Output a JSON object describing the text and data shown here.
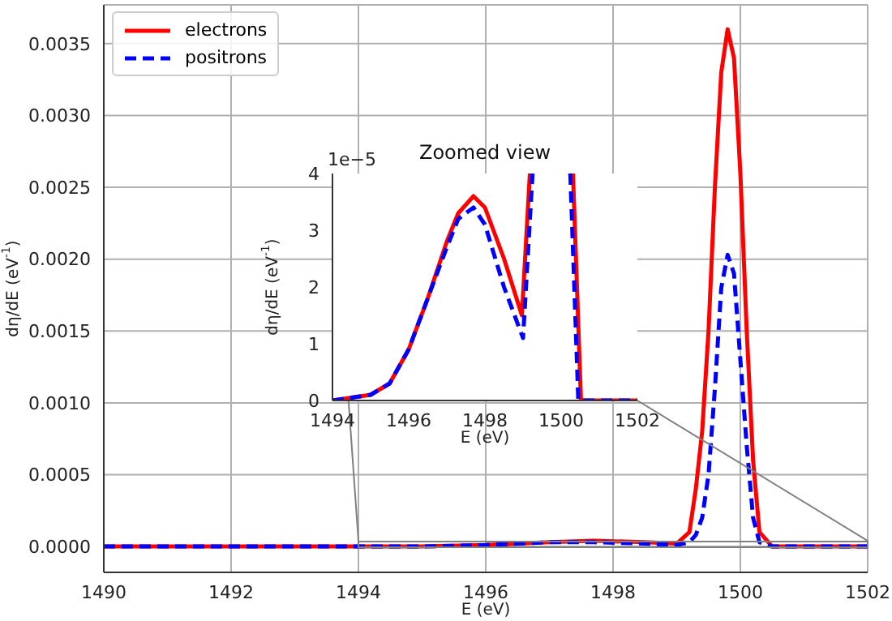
{
  "chart_data": [
    {
      "type": "line",
      "xlabel": "E (eV)",
      "ylabel": "dη/dE (eV$^{-1}$)",
      "xlim": [
        1490,
        1502
      ],
      "ylim": [
        -0.00018,
        0.00377
      ],
      "xticks": [
        1490,
        1492,
        1494,
        1496,
        1498,
        1500,
        1502
      ],
      "yticks": [
        {
          "value": 0,
          "label": "0.0000"
        },
        {
          "value": 0.0005,
          "label": "0.0005"
        },
        {
          "value": 0.001,
          "label": "0.0010"
        },
        {
          "value": 0.0015,
          "label": "0.0015"
        },
        {
          "value": 0.002,
          "label": "0.0020"
        },
        {
          "value": 0.0025,
          "label": "0.0025"
        },
        {
          "value": 0.003,
          "label": "0.0030"
        },
        {
          "value": 0.0035,
          "label": "0.0035"
        }
      ],
      "grid": true,
      "legend": "top left",
      "x": [
        1490,
        1494,
        1495,
        1496,
        1497,
        1497.7,
        1498.5,
        1499,
        1499.2,
        1499.3,
        1499.4,
        1499.5,
        1499.6,
        1499.7,
        1499.8,
        1499.9,
        1500,
        1500.1,
        1500.2,
        1500.3,
        1500.5,
        1502
      ],
      "series": [
        {
          "name": "electrons",
          "color": "#ff0000",
          "line_style": "solid",
          "values": [
            0,
            0,
            0,
            1e-05,
            3e-05,
            4e-05,
            3e-05,
            2e-05,
            0.0001,
            0.0004,
            0.0008,
            0.0015,
            0.0025,
            0.0033,
            0.0036,
            0.0034,
            0.0026,
            0.0015,
            0.0006,
            0.0001,
            0,
            0
          ]
        },
        {
          "name": "positrons",
          "color": "#0000ff",
          "line_style": "dashed",
          "values": [
            0,
            0,
            0,
            1e-05,
            3e-05,
            3e-05,
            2e-05,
            1e-05,
            3e-05,
            8e-05,
            0.0002,
            0.0005,
            0.0011,
            0.0018,
            0.00203,
            0.0019,
            0.0013,
            0.0007,
            0.0002,
            3e-05,
            0,
            0
          ]
        }
      ]
    },
    {
      "type": "line",
      "title": "Zoomed view",
      "xlabel": "E (eV)",
      "ylabel": "dη/dE (eV$^{-1}$)",
      "annotations": [
        "1e−5"
      ],
      "xlim": [
        1494,
        1502
      ],
      "ylim": [
        0,
        4
      ],
      "xticks": [
        1494,
        1496,
        1498,
        1500,
        1502
      ],
      "yticks": [
        0,
        1,
        2,
        3,
        4
      ],
      "series": [
        {
          "color": "#ff0000",
          "line_style": "solid",
          "x": [
            1494,
            1495,
            1495.5,
            1496,
            1496.5,
            1497,
            1497.3,
            1497.7,
            1498,
            1498.5,
            1498.97,
            1499.18,
            1499.8,
            1500.31,
            1500.52,
            1502
          ],
          "values": [
            0,
            0.1,
            0.3,
            0.9,
            1.8,
            2.8,
            3.3,
            3.6,
            3.4,
            2.5,
            1.5,
            4,
            null,
            4,
            0,
            0
          ]
        },
        {
          "color": "#0000ff",
          "line_style": "dashed",
          "x": [
            1494,
            1495,
            1495.5,
            1496,
            1496.5,
            1497,
            1497.3,
            1497.7,
            1498,
            1498.5,
            1499,
            1499.25,
            1499.8,
            1500.24,
            1500.45,
            1502
          ],
          "values": [
            0,
            0.1,
            0.3,
            0.9,
            1.8,
            2.7,
            3.2,
            3.4,
            3.1,
            2.0,
            1.1,
            4,
            null,
            4,
            0,
            0
          ]
        }
      ]
    }
  ]
}
